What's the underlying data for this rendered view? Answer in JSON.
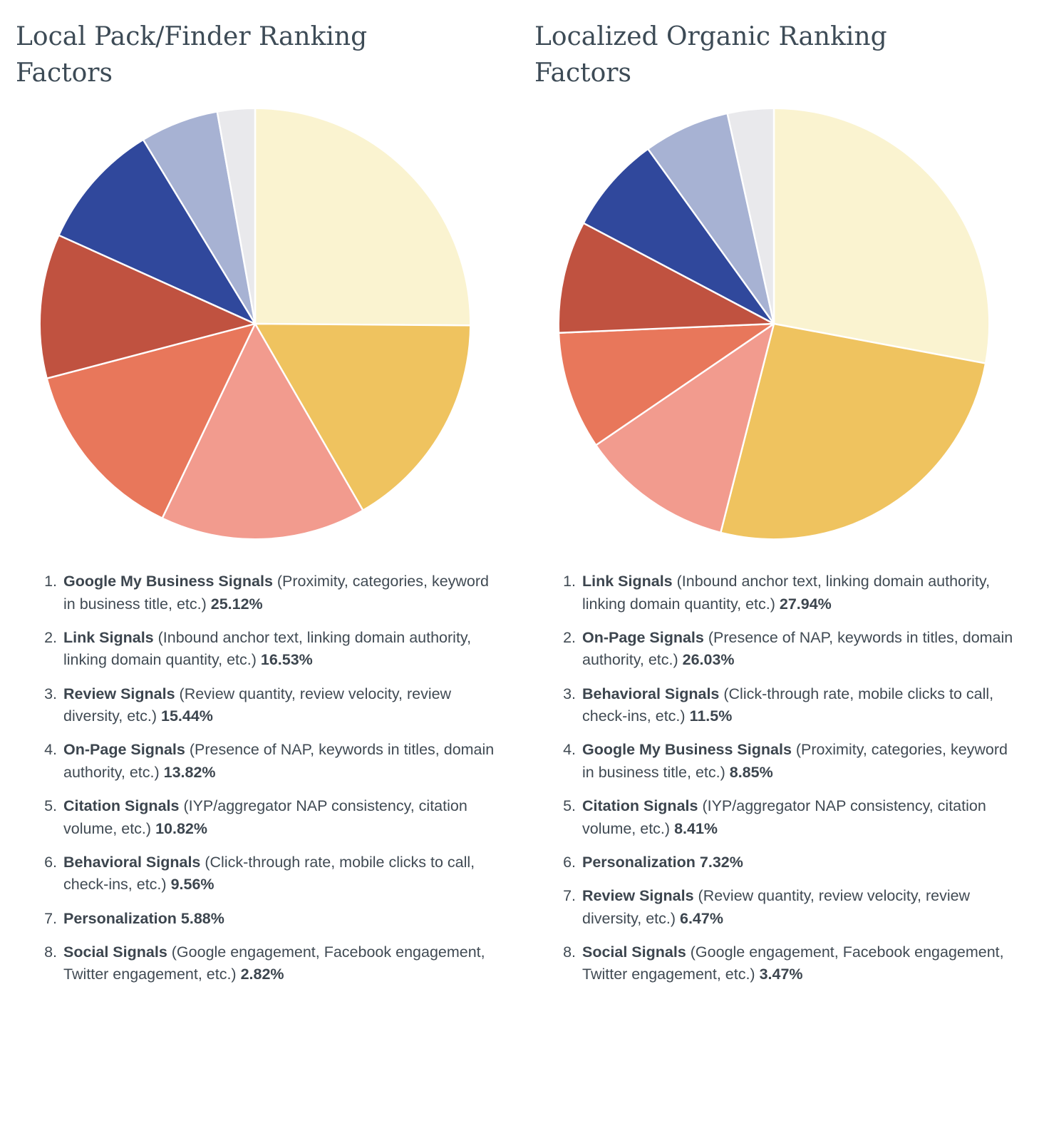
{
  "chart_data": [
    {
      "type": "pie",
      "title": "Local Pack/Finder Ranking Factors",
      "labels": [
        "Google My Business Signals",
        "Link Signals",
        "Review Signals",
        "On-Page Signals",
        "Citation Signals",
        "Behavioral Signals",
        "Personalization",
        "Social Signals"
      ],
      "values": [
        25.12,
        16.53,
        15.44,
        13.82,
        10.82,
        9.56,
        5.88,
        2.82
      ],
      "colors": [
        "#FAF3D0",
        "#EFC35F",
        "#F29B8E",
        "#E8775B",
        "#C05240",
        "#30489C",
        "#A7B2D3",
        "#E9E9EC"
      ],
      "legend_position": "bottom",
      "legend_items": [
        {
          "num": "1.",
          "name": "Google My Business Signals",
          "desc": "(Proximity, categories, keyword in business title, etc.)",
          "pct": "25.12%"
        },
        {
          "num": "2.",
          "name": "Link Signals",
          "desc": "(Inbound anchor text, linking domain authority, linking domain quantity, etc.)",
          "pct": "16.53%"
        },
        {
          "num": "3.",
          "name": "Review Signals",
          "desc": "(Review quantity, review velocity, review diversity, etc.)",
          "pct": "15.44%"
        },
        {
          "num": "4.",
          "name": "On-Page Signals",
          "desc": "(Presence of NAP, keywords in titles, domain authority, etc.)",
          "pct": "13.82%"
        },
        {
          "num": "5.",
          "name": "Citation Signals",
          "desc": "(IYP/aggregator NAP consistency, citation volume, etc.)",
          "pct": "10.82%"
        },
        {
          "num": "6.",
          "name": "Behavioral Signals",
          "desc": "(Click-through rate, mobile clicks to call, check-ins, etc.)",
          "pct": "9.56%"
        },
        {
          "num": "7.",
          "name": "Personalization",
          "desc": "",
          "pct": "5.88%"
        },
        {
          "num": "8.",
          "name": "Social Signals",
          "desc": "(Google engagement, Facebook engagement, Twitter engagement, etc.)",
          "pct": "2.82%"
        }
      ]
    },
    {
      "type": "pie",
      "title": "Localized Organic Ranking Factors",
      "labels": [
        "Link Signals",
        "On-Page Signals",
        "Behavioral Signals",
        "Google My Business Signals",
        "Citation Signals",
        "Personalization",
        "Review Signals",
        "Social Signals"
      ],
      "values": [
        27.94,
        26.03,
        11.5,
        8.85,
        8.41,
        7.32,
        6.47,
        3.47
      ],
      "colors": [
        "#FAF3D0",
        "#EFC35F",
        "#F29B8E",
        "#E8775B",
        "#C05240",
        "#30489C",
        "#A7B2D3",
        "#E9E9EC"
      ],
      "legend_position": "bottom",
      "legend_items": [
        {
          "num": "1.",
          "name": "Link Signals",
          "desc": "(Inbound anchor text, linking domain authority, linking domain quantity, etc.)",
          "pct": "27.94%"
        },
        {
          "num": "2.",
          "name": "On-Page Signals",
          "desc": "(Presence of NAP, keywords in titles, domain authority, etc.)",
          "pct": "26.03%"
        },
        {
          "num": "3.",
          "name": "Behavioral Signals",
          "desc": "(Click-through rate, mobile clicks to call, check-ins, etc.)",
          "pct": "11.5%"
        },
        {
          "num": "4.",
          "name": "Google My Business Signals",
          "desc": "(Proximity, categories, keyword in business title, etc.)",
          "pct": "8.85%"
        },
        {
          "num": "5.",
          "name": "Citation Signals",
          "desc": "(IYP/aggregator NAP consistency, citation volume, etc.)",
          "pct": "8.41%"
        },
        {
          "num": "6.",
          "name": "Personalization",
          "desc": "",
          "pct": "7.32%"
        },
        {
          "num": "7.",
          "name": "Review Signals",
          "desc": "(Review quantity, review velocity, review diversity, etc.)",
          "pct": "6.47%"
        },
        {
          "num": "8.",
          "name": "Social Signals",
          "desc": "(Google engagement, Facebook engagement, Twitter engagement, etc.)",
          "pct": "3.47%"
        }
      ]
    }
  ]
}
